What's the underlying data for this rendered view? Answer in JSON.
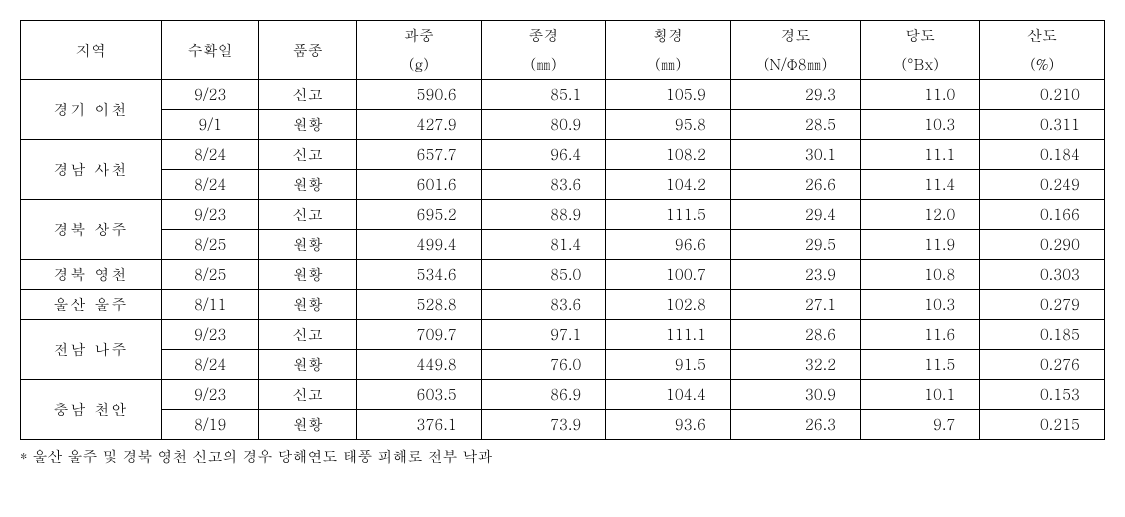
{
  "table": {
    "headers": {
      "region": "지역",
      "harvest_date": "수확일",
      "variety": "품종",
      "weight": "과중",
      "weight_unit": "(g)",
      "length": "종경",
      "length_unit": "(㎜)",
      "width": "횡경",
      "width_unit": "(㎜)",
      "hardness": "경도",
      "hardness_unit": "(N/Φ8㎜)",
      "sugar": "당도",
      "sugar_unit": "(°Bx)",
      "acidity": "산도",
      "acidity_unit": "(%)"
    },
    "regions": [
      {
        "name": "경기 이천",
        "rows": [
          {
            "date": "9/23",
            "variety": "신고",
            "weight": "590.6",
            "length": "85.1",
            "width": "105.9",
            "hardness": "29.3",
            "sugar": "11.0",
            "acidity": "0.210"
          },
          {
            "date": "9/1",
            "variety": "원황",
            "weight": "427.9",
            "length": "80.9",
            "width": "95.8",
            "hardness": "28.5",
            "sugar": "10.3",
            "acidity": "0.311"
          }
        ]
      },
      {
        "name": "경남 사천",
        "rows": [
          {
            "date": "8/24",
            "variety": "신고",
            "weight": "657.7",
            "length": "96.4",
            "width": "108.2",
            "hardness": "30.1",
            "sugar": "11.1",
            "acidity": "0.184"
          },
          {
            "date": "8/24",
            "variety": "원황",
            "weight": "601.6",
            "length": "83.6",
            "width": "104.2",
            "hardness": "26.6",
            "sugar": "11.4",
            "acidity": "0.249"
          }
        ]
      },
      {
        "name": "경북 상주",
        "rows": [
          {
            "date": "9/23",
            "variety": "신고",
            "weight": "695.2",
            "length": "88.9",
            "width": "111.5",
            "hardness": "29.4",
            "sugar": "12.0",
            "acidity": "0.166"
          },
          {
            "date": "8/25",
            "variety": "원황",
            "weight": "499.4",
            "length": "81.4",
            "width": "96.6",
            "hardness": "29.5",
            "sugar": "11.9",
            "acidity": "0.290"
          }
        ]
      },
      {
        "name": "경북 영천",
        "rows": [
          {
            "date": "8/25",
            "variety": "원황",
            "weight": "534.6",
            "length": "85.0",
            "width": "100.7",
            "hardness": "23.9",
            "sugar": "10.8",
            "acidity": "0.303"
          }
        ]
      },
      {
        "name": "울산 울주",
        "rows": [
          {
            "date": "8/11",
            "variety": "원황",
            "weight": "528.8",
            "length": "83.6",
            "width": "102.8",
            "hardness": "27.1",
            "sugar": "10.3",
            "acidity": "0.279"
          }
        ]
      },
      {
        "name": "전남 나주",
        "rows": [
          {
            "date": "9/23",
            "variety": "신고",
            "weight": "709.7",
            "length": "97.1",
            "width": "111.1",
            "hardness": "28.6",
            "sugar": "11.6",
            "acidity": "0.185"
          },
          {
            "date": "8/24",
            "variety": "원황",
            "weight": "449.8",
            "length": "76.0",
            "width": "91.5",
            "hardness": "32.2",
            "sugar": "11.5",
            "acidity": "0.276"
          }
        ]
      },
      {
        "name": "충남 천안",
        "rows": [
          {
            "date": "9/23",
            "variety": "신고",
            "weight": "603.5",
            "length": "86.9",
            "width": "104.4",
            "hardness": "30.9",
            "sugar": "10.1",
            "acidity": "0.153"
          },
          {
            "date": "8/19",
            "variety": "원황",
            "weight": "376.1",
            "length": "73.9",
            "width": "93.6",
            "hardness": "26.3",
            "sugar": "9.7",
            "acidity": "0.215"
          }
        ]
      }
    ]
  },
  "footnote": "* 울산 울주 및 경북 영천 신고의 경우 당해연도 태풍 피해로 전부 낙과",
  "styling": {
    "background_color": "#ffffff",
    "border_color": "#000000",
    "font_size": 15,
    "col_widths_pct": [
      13,
      9,
      9,
      11.5,
      11.5,
      11.5,
      12,
      11,
      11.5
    ]
  }
}
